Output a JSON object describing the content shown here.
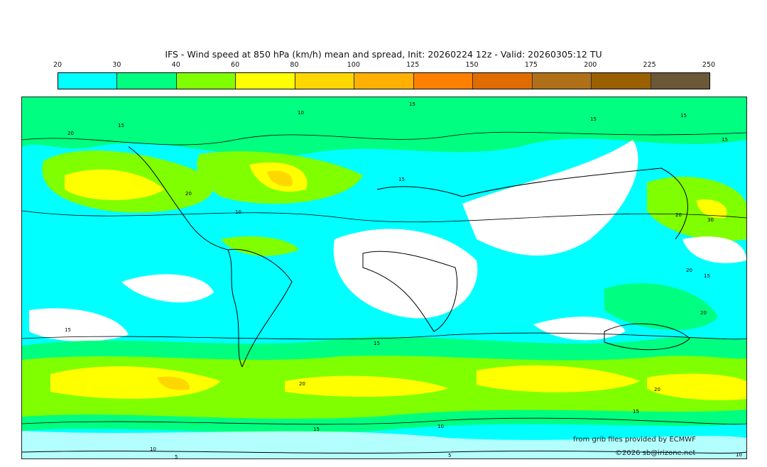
{
  "title": "IFS - Wind speed at 850 hPa (km/h) mean and spread, Init: 20260224 12z - Valid: 20260305:12 TU",
  "colorbar": {
    "ticks": [
      "20",
      "30",
      "40",
      "60",
      "80",
      "100",
      "125",
      "150",
      "175",
      "200",
      "225",
      "250"
    ],
    "colors": [
      "#00ffff",
      "#00ff80",
      "#80ff00",
      "#ffff00",
      "#ffd700",
      "#ffb000",
      "#ff8000",
      "#e06c00",
      "#b07018",
      "#9a6000",
      "#6b5837"
    ]
  },
  "map": {
    "contour_labels": [
      "15",
      "15",
      "15",
      "10",
      "20",
      "20",
      "15",
      "15",
      "15",
      "10",
      "20",
      "30",
      "20",
      "15",
      "20",
      "15",
      "20",
      "10",
      "15",
      "15",
      "10",
      "5",
      "5",
      "20",
      "15",
      "10"
    ]
  },
  "credits": {
    "source": "from grib files provided by ECMWF",
    "copyright": "©2026 sb@irizone.net"
  }
}
